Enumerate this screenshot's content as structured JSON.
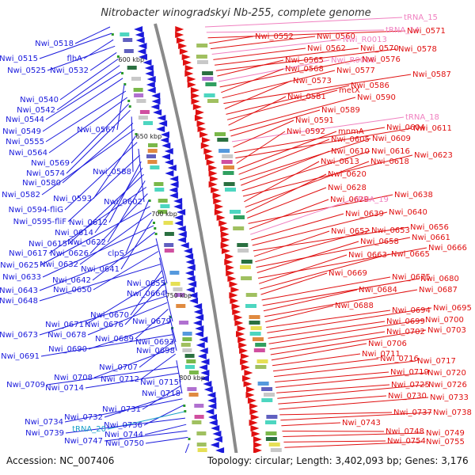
{
  "header": {
    "title": "Nitrobacter winogradskyi Nb-255, complete genome"
  },
  "footer": {
    "accession": "Accession: NC_007406",
    "summary": "Topology: circular; Length: 3,402,093 bp; Genes: 3,176"
  },
  "colors": {
    "minus_strand": "#1a1adc",
    "plus_strand": "#e01010",
    "rna_pink": "#f080c0",
    "rna_cyan": "#1aa0c8",
    "backbone": "#8a8a8a"
  },
  "scale_marks": [
    "600 kbp",
    "650 kbp",
    "700 kbp",
    "750 kbp",
    "800 kbp",
    "850"
  ],
  "left_labels": [
    {
      "text": "Nwi_0518",
      "kind": "gene"
    },
    {
      "text": "Nwi_0515",
      "kind": "gene"
    },
    {
      "text": "flhA",
      "kind": "gene"
    },
    {
      "text": "Nwi_0525",
      "kind": "gene"
    },
    {
      "text": "Nwi_0532",
      "kind": "gene"
    },
    {
      "text": "Nwi_0540",
      "kind": "gene"
    },
    {
      "text": "Nwi_0542",
      "kind": "gene"
    },
    {
      "text": "Nwi_0544",
      "kind": "gene"
    },
    {
      "text": "Nwi_0549",
      "kind": "gene"
    },
    {
      "text": "Nwi_0567",
      "kind": "gene"
    },
    {
      "text": "Nwi_0555",
      "kind": "gene"
    },
    {
      "text": "Nwi_0564",
      "kind": "gene"
    },
    {
      "text": "Nwi_0569",
      "kind": "gene"
    },
    {
      "text": "Nwi_0574",
      "kind": "gene"
    },
    {
      "text": "Nwi_0588",
      "kind": "gene"
    },
    {
      "text": "Nwi_0580",
      "kind": "gene"
    },
    {
      "text": "Nwi_0582",
      "kind": "gene"
    },
    {
      "text": "Nwi_0593",
      "kind": "gene"
    },
    {
      "text": "Nwi_0594-fliG",
      "kind": "gene"
    },
    {
      "text": "Nwi_0602",
      "kind": "gene"
    },
    {
      "text": "Nwi_0595-fliF",
      "kind": "gene"
    },
    {
      "text": "Nwi_0612",
      "kind": "gene"
    },
    {
      "text": "Nwi_0614",
      "kind": "gene"
    },
    {
      "text": "Nwi_0615",
      "kind": "gene"
    },
    {
      "text": "Nwi_0622",
      "kind": "gene"
    },
    {
      "text": "Nwi_0617",
      "kind": "gene"
    },
    {
      "text": "Nwi_0626",
      "kind": "gene"
    },
    {
      "text": "clpS",
      "kind": "gene"
    },
    {
      "text": "Nwi_0625",
      "kind": "gene"
    },
    {
      "text": "Nwi_0632",
      "kind": "gene"
    },
    {
      "text": "Nwi_0641",
      "kind": "gene"
    },
    {
      "text": "Nwi_0633",
      "kind": "gene"
    },
    {
      "text": "Nwi_0642",
      "kind": "gene"
    },
    {
      "text": "Nwi_0655",
      "kind": "gene"
    },
    {
      "text": "Nwi_0643",
      "kind": "gene"
    },
    {
      "text": "Nwi_0650",
      "kind": "gene"
    },
    {
      "text": "Nwi_0664",
      "kind": "gene"
    },
    {
      "text": "Nwi_0648",
      "kind": "gene"
    },
    {
      "text": "Nwi_0670",
      "kind": "gene"
    },
    {
      "text": "Nwi_0671",
      "kind": "gene"
    },
    {
      "text": "Nwi_0676",
      "kind": "gene"
    },
    {
      "text": "Nwi_0679",
      "kind": "gene"
    },
    {
      "text": "Nwi_0673",
      "kind": "gene"
    },
    {
      "text": "Nwi_0678",
      "kind": "gene"
    },
    {
      "text": "Nwi_0689",
      "kind": "gene"
    },
    {
      "text": "Nwi_0693",
      "kind": "gene"
    },
    {
      "text": "Nwi_0690",
      "kind": "gene"
    },
    {
      "text": "Nwi_0698",
      "kind": "gene"
    },
    {
      "text": "Nwi_0691",
      "kind": "gene"
    },
    {
      "text": "Nwi_0707",
      "kind": "gene"
    },
    {
      "text": "Nwi_0708",
      "kind": "gene"
    },
    {
      "text": "Nwi_0712",
      "kind": "gene"
    },
    {
      "text": "Nwi_0715",
      "kind": "gene"
    },
    {
      "text": "Nwi_0709",
      "kind": "gene"
    },
    {
      "text": "Nwi_0714",
      "kind": "gene"
    },
    {
      "text": "Nwi_0718",
      "kind": "gene"
    },
    {
      "text": "Nwi_0731",
      "kind": "gene"
    },
    {
      "text": "Nwi_0732",
      "kind": "gene"
    },
    {
      "text": "Nwi_0734",
      "kind": "gene"
    },
    {
      "text": "Nwi_0736",
      "kind": "gene"
    },
    {
      "text": "tRNA_20",
      "kind": "rna"
    },
    {
      "text": "Nwi_0739",
      "kind": "gene"
    },
    {
      "text": "Nwi_0744",
      "kind": "gene"
    },
    {
      "text": "Nwi_0747",
      "kind": "gene"
    },
    {
      "text": "Nwi_0750",
      "kind": "gene"
    },
    {
      "text": "Nwi_0760",
      "kind": "gene"
    }
  ],
  "right_labels": [
    {
      "text": "tRNA_15",
      "kind": "rna"
    },
    {
      "text": "tRNA_14",
      "kind": "rna"
    },
    {
      "text": "Nwi_0571",
      "kind": "gene"
    },
    {
      "text": "Nwi_0552",
      "kind": "gene"
    },
    {
      "text": "Nwi_0560",
      "kind": "gene"
    },
    {
      "text": "Nwi_R0013",
      "kind": "rna"
    },
    {
      "text": "Nwi_0562",
      "kind": "gene"
    },
    {
      "text": "Nwi_0570",
      "kind": "gene"
    },
    {
      "text": "Nwi_0578",
      "kind": "gene"
    },
    {
      "text": "Nwi_0565",
      "kind": "gene"
    },
    {
      "text": "Nwi_R0016",
      "kind": "rna"
    },
    {
      "text": "Nwi_0576",
      "kind": "gene"
    },
    {
      "text": "Nwi_0568",
      "kind": "gene"
    },
    {
      "text": "Nwi_0577",
      "kind": "gene"
    },
    {
      "text": "Nwi_0587",
      "kind": "gene"
    },
    {
      "text": "Nwi_0573",
      "kind": "gene"
    },
    {
      "text": "Nwi_0586",
      "kind": "gene"
    },
    {
      "text": "metX",
      "kind": "gene"
    },
    {
      "text": "Nwi_0581",
      "kind": "gene"
    },
    {
      "text": "Nwi_0590",
      "kind": "gene"
    },
    {
      "text": "Nwi_0589",
      "kind": "gene"
    },
    {
      "text": "tRNA_18",
      "kind": "rna"
    },
    {
      "text": "Nwi_0591",
      "kind": "gene"
    },
    {
      "text": "Nwi_0604",
      "kind": "gene"
    },
    {
      "text": "Nwi_0611",
      "kind": "gene"
    },
    {
      "text": "Nwi_0592",
      "kind": "gene"
    },
    {
      "text": "mnmA",
      "kind": "gene"
    },
    {
      "text": "Nwi_0605",
      "kind": "gene"
    },
    {
      "text": "Nwi_0609",
      "kind": "gene"
    },
    {
      "text": "Nwi_0610",
      "kind": "gene"
    },
    {
      "text": "Nwi_0616",
      "kind": "gene"
    },
    {
      "text": "Nwi_0623",
      "kind": "gene"
    },
    {
      "text": "Nwi_0613",
      "kind": "gene"
    },
    {
      "text": "Nwi_0618",
      "kind": "gene"
    },
    {
      "text": "Nwi_0620",
      "kind": "gene"
    },
    {
      "text": "Nwi_0628",
      "kind": "gene"
    },
    {
      "text": "Nwi_0638",
      "kind": "gene"
    },
    {
      "text": "Nwi_0629",
      "kind": "gene"
    },
    {
      "text": "tRNA_19",
      "kind": "rna"
    },
    {
      "text": "Nwi_0639",
      "kind": "gene"
    },
    {
      "text": "Nwi_0640",
      "kind": "gene"
    },
    {
      "text": "Nwi_0656",
      "kind": "gene"
    },
    {
      "text": "Nwi_0652",
      "kind": "gene"
    },
    {
      "text": "Nwi_0653",
      "kind": "gene"
    },
    {
      "text": "Nwi_0661",
      "kind": "gene"
    },
    {
      "text": "Nwi_0658",
      "kind": "gene"
    },
    {
      "text": "Nwi_0666",
      "kind": "gene"
    },
    {
      "text": "Nwi_0663",
      "kind": "gene"
    },
    {
      "text": "Nwi_0665",
      "kind": "gene"
    },
    {
      "text": "Nwi_0669",
      "kind": "gene"
    },
    {
      "text": "Nwi_0675",
      "kind": "gene"
    },
    {
      "text": "Nwi_0680",
      "kind": "gene"
    },
    {
      "text": "Nwi_0684",
      "kind": "gene"
    },
    {
      "text": "Nwi_0687",
      "kind": "gene"
    },
    {
      "text": "Nwi_0688",
      "kind": "gene"
    },
    {
      "text": "Nwi_0694",
      "kind": "gene"
    },
    {
      "text": "Nwi_0695",
      "kind": "gene"
    },
    {
      "text": "Nwi_0699",
      "kind": "gene"
    },
    {
      "text": "Nwi_0700",
      "kind": "gene"
    },
    {
      "text": "Nwi_0702",
      "kind": "gene"
    },
    {
      "text": "Nwi_0703",
      "kind": "gene"
    },
    {
      "text": "Nwi_0706",
      "kind": "gene"
    },
    {
      "text": "Nwi_0711",
      "kind": "gene"
    },
    {
      "text": "Nwi_0716",
      "kind": "gene"
    },
    {
      "text": "Nwi_0717",
      "kind": "gene"
    },
    {
      "text": "Nwi_0719",
      "kind": "gene"
    },
    {
      "text": "Nwi_0720",
      "kind": "gene"
    },
    {
      "text": "Nwi_0725",
      "kind": "gene"
    },
    {
      "text": "Nwi_0726",
      "kind": "gene"
    },
    {
      "text": "Nwi_0730",
      "kind": "gene"
    },
    {
      "text": "Nwi_0733",
      "kind": "gene"
    },
    {
      "text": "Nwi_0737",
      "kind": "gene"
    },
    {
      "text": "Nwi_0738",
      "kind": "gene"
    },
    {
      "text": "Nwi_0743",
      "kind": "gene"
    },
    {
      "text": "Nwi_0748",
      "kind": "gene"
    },
    {
      "text": "Nwi_0749",
      "kind": "gene"
    },
    {
      "text": "Nwi_0754",
      "kind": "gene"
    },
    {
      "text": "Nwi_0755",
      "kind": "gene"
    }
  ]
}
